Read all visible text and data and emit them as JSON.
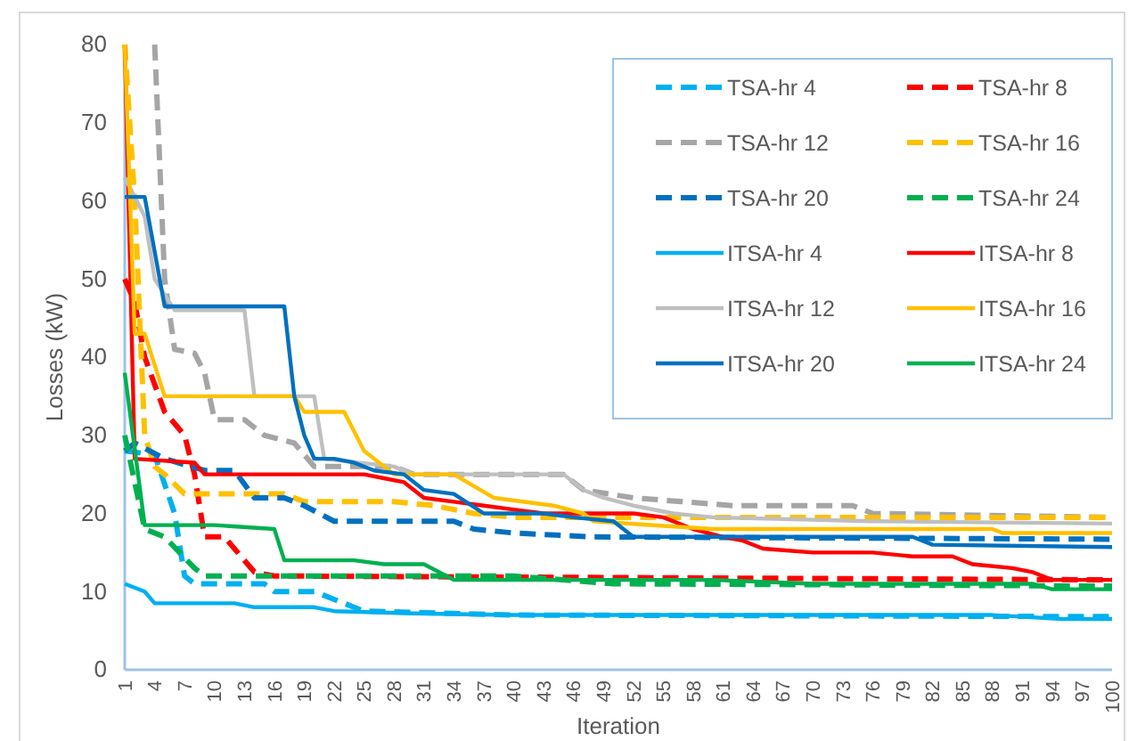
{
  "chart_data": {
    "type": "line",
    "xlabel": "Iteration",
    "ylabel": "Losses (kW)",
    "xlim": [
      1,
      100
    ],
    "xticks": [
      1,
      4,
      7,
      10,
      13,
      16,
      19,
      22,
      25,
      28,
      31,
      34,
      37,
      40,
      43,
      46,
      49,
      52,
      55,
      58,
      61,
      64,
      67,
      70,
      73,
      76,
      79,
      82,
      85,
      88,
      91,
      94,
      97,
      100
    ],
    "ylim": [
      0,
      80
    ],
    "yticks": [
      0,
      10,
      20,
      30,
      40,
      50,
      60,
      70,
      80
    ],
    "grid": false,
    "legend": "top right",
    "marker": "none",
    "series": [
      {
        "name": "TSA-hr 4",
        "color": "#00b0f0",
        "line_style": "dashed",
        "x": [
          1,
          4,
          6,
          7,
          8,
          15,
          16,
          20,
          22,
          25,
          40,
          100
        ],
        "values": [
          28,
          27.5,
          20,
          12,
          11,
          11,
          10,
          10,
          9,
          7.5,
          7,
          6.8
        ]
      },
      {
        "name": "TSA-hr 8",
        "color": "#ff0000",
        "line_style": "dashed",
        "x": [
          1,
          2,
          3,
          5,
          7,
          8,
          9,
          11,
          14,
          16,
          100
        ],
        "values": [
          50,
          47,
          40,
          33,
          30,
          25,
          17,
          17,
          12.5,
          12,
          11.5
        ]
      },
      {
        "name": "TSA-hr 12",
        "color": "#a5a5a5",
        "line_style": "dashed",
        "x": [
          4,
          5,
          6,
          8,
          9,
          10,
          13,
          15,
          18,
          20,
          28,
          30,
          45,
          47,
          52,
          62,
          74,
          76,
          100
        ],
        "values": [
          80,
          50,
          41,
          40.5,
          38,
          32,
          32,
          30,
          29,
          26,
          26,
          25,
          25,
          23,
          22,
          21,
          21,
          20,
          19.5
        ]
      },
      {
        "name": "TSA-hr 16",
        "color": "#ffc000",
        "line_style": "dashed",
        "x": [
          1,
          2,
          3,
          4,
          5,
          7,
          17,
          19,
          28,
          32,
          36,
          40,
          100
        ],
        "values": [
          80,
          60,
          30,
          26,
          25,
          22.5,
          22.5,
          21.5,
          21.5,
          21,
          20,
          19.5,
          19.5
        ]
      },
      {
        "name": "TSA-hr 20",
        "color": "#0070c0",
        "line_style": "dashed",
        "x": [
          1,
          2,
          5,
          9,
          12,
          14,
          17,
          19,
          22,
          34,
          36,
          40,
          48,
          100
        ],
        "values": [
          28,
          29,
          27,
          25.5,
          25.5,
          22,
          22,
          21,
          19,
          19,
          18,
          17.5,
          17,
          16.7
        ]
      },
      {
        "name": "TSA-hr 24",
        "color": "#00b050",
        "line_style": "dashed",
        "x": [
          1,
          3,
          5,
          8,
          9,
          40,
          50,
          100
        ],
        "values": [
          30,
          18,
          17,
          13,
          12,
          12,
          11,
          10.7
        ]
      },
      {
        "name": "ITSA-hr 4",
        "color": "#00b0f0",
        "line_style": "solid",
        "x": [
          1,
          3,
          4,
          12,
          14,
          20,
          22,
          30,
          40,
          88,
          95,
          100
        ],
        "values": [
          11,
          10,
          8.5,
          8.5,
          8,
          8,
          7.5,
          7.2,
          7,
          7,
          6.5,
          6.5
        ]
      },
      {
        "name": "ITSA-hr 8",
        "color": "#ff0000",
        "line_style": "solid",
        "x": [
          1,
          2,
          8,
          9,
          25,
          27,
          29,
          31,
          34,
          37,
          40,
          43,
          52,
          55,
          58,
          61,
          63,
          65,
          70,
          76,
          80,
          84,
          86,
          90,
          92,
          94,
          100
        ],
        "values": [
          80,
          27,
          26.5,
          25,
          25,
          24.5,
          24,
          22,
          21.5,
          21,
          20.5,
          20,
          20,
          19.5,
          18,
          17,
          16.5,
          15.5,
          15,
          15,
          14.5,
          14.5,
          13.5,
          13,
          12.5,
          11.5,
          11.5
        ]
      },
      {
        "name": "ITSA-hr 12",
        "color": "#bfbfbf",
        "line_style": "solid",
        "x": [
          1,
          3,
          4,
          6,
          13,
          14,
          20,
          21,
          28,
          30,
          45,
          47,
          49,
          52,
          56,
          60,
          76,
          100
        ],
        "values": [
          63,
          58,
          50,
          46,
          46,
          35,
          35,
          27,
          26,
          25,
          25,
          23,
          22,
          21,
          20,
          19.5,
          19,
          18.7
        ]
      },
      {
        "name": "ITSA-hr 16",
        "color": "#ffc000",
        "line_style": "solid",
        "x": [
          1,
          2,
          3,
          5,
          18,
          19,
          23,
          25,
          28,
          34,
          38,
          44,
          47,
          48,
          60,
          88,
          89,
          100
        ],
        "values": [
          80,
          43,
          43,
          35,
          35,
          33,
          33,
          28,
          25,
          25,
          22,
          21,
          20,
          19,
          18,
          18,
          17.5,
          17.5
        ]
      },
      {
        "name": "ITSA-hr 20",
        "color": "#0070c0",
        "line_style": "solid",
        "x": [
          1,
          3,
          5,
          17,
          18,
          19,
          20,
          22,
          24,
          26,
          29,
          31,
          34,
          37,
          43,
          46,
          50,
          52,
          80,
          82,
          100
        ],
        "values": [
          60.5,
          60.5,
          46.5,
          46.5,
          35,
          30,
          27,
          27,
          26.5,
          25.5,
          25,
          23,
          22.5,
          20,
          20,
          19.5,
          19,
          17,
          17,
          16,
          15.7
        ]
      },
      {
        "name": "ITSA-hr 24",
        "color": "#00b050",
        "line_style": "solid",
        "x": [
          1,
          3,
          10,
          16,
          17,
          24,
          27,
          31,
          34,
          60,
          70,
          92,
          94,
          100
        ],
        "values": [
          38,
          18.5,
          18.5,
          18,
          14,
          14,
          13.5,
          13.5,
          11.5,
          11.5,
          11,
          11,
          10.3,
          10.3
        ]
      }
    ]
  }
}
